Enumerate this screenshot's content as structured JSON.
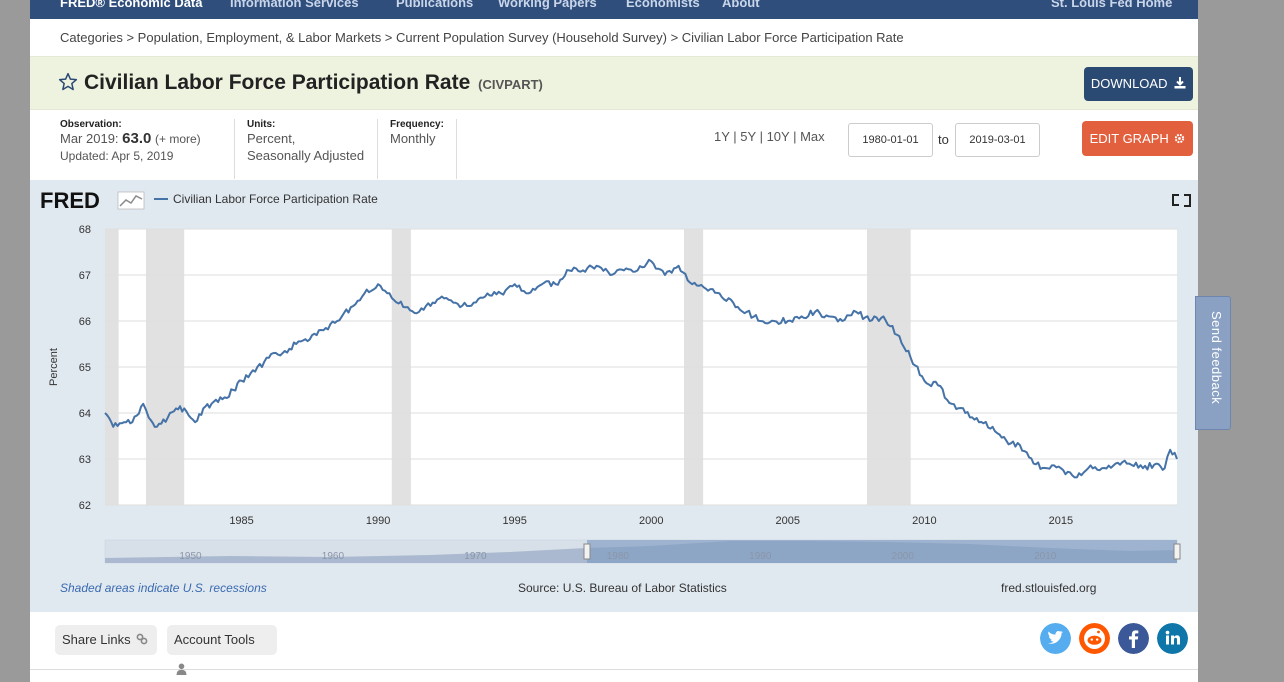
{
  "nav": {
    "brand": "FRED® Economic Data",
    "items": [
      "Information Services",
      "Publications",
      "Working Papers",
      "Economists",
      "About"
    ],
    "right": "St. Louis Fed Home"
  },
  "breadcrumb": "Categories > Population, Employment, & Labor Markets > Current Population Survey (Household Survey) > Civilian Labor Force Participation Rate",
  "header": {
    "title": "Civilian Labor Force Participation Rate",
    "series_id": "(CIVPART)",
    "download_label": "DOWNLOAD",
    "edit_label": "EDIT GRAPH"
  },
  "meta": {
    "obs_label": "Observation:",
    "obs_date": "Mar 2019:",
    "obs_value": "63.0",
    "obs_more": "(+ more)",
    "updated": "Updated: Apr 5, 2019",
    "units_label": "Units:",
    "units_line1": "Percent,",
    "units_line2": "Seasonally Adjusted",
    "freq_label": "Frequency:",
    "freq_value": "Monthly"
  },
  "range": {
    "links": [
      "1Y",
      "5Y",
      "10Y",
      "Max"
    ],
    "from": "1980-01-01",
    "to_label": "to",
    "to": "2019-03-01"
  },
  "graph": {
    "logo": "FRED",
    "source": "Source: U.S. Bureau of Labor Statistics",
    "footnote": "Shaded areas indicate U.S. recessions",
    "site": "fred.stlouisfed.org",
    "navigator_labels": [
      "1950",
      "1960",
      "1970",
      "1980",
      "1990",
      "2000",
      "2010"
    ]
  },
  "bottom": {
    "share": "Share Links",
    "account": "Account Tools"
  },
  "feedback": "Send feedback",
  "colors": {
    "nav_bg": "#2f4e7c",
    "line": "#4572a7",
    "download": "#2b4a73",
    "edit": "#e3603e",
    "twitter": "#55acee",
    "reddit": "#ff5700",
    "facebook": "#3b5998",
    "linkedin": "#0e76a8"
  },
  "chart_data": {
    "type": "line",
    "title": "",
    "legend": [
      "Civilian Labor Force Participation Rate"
    ],
    "legend_position": "top-left",
    "xlabel": "",
    "ylabel": "Percent",
    "xlim": [
      1980.0,
      2019.25
    ],
    "ylim": [
      62,
      68
    ],
    "yticks": [
      62,
      63,
      64,
      65,
      66,
      67,
      68
    ],
    "xticks": [
      1985,
      1990,
      1995,
      2000,
      2005,
      2010,
      2015
    ],
    "recessions": [
      [
        1980.0,
        1980.5
      ],
      [
        1981.5,
        1982.9
      ],
      [
        1990.5,
        1991.2
      ],
      [
        2001.2,
        2001.9
      ],
      [
        2007.9,
        2009.5
      ]
    ],
    "series": [
      {
        "name": "Civilian Labor Force Participation Rate",
        "x": [
          1980.0,
          1980.3,
          1980.7,
          1981.0,
          1981.4,
          1981.6,
          1981.9,
          1982.3,
          1982.6,
          1982.9,
          1983.3,
          1983.6,
          1983.9,
          1984.3,
          1984.7,
          1985.0,
          1985.5,
          1986.0,
          1986.5,
          1987.0,
          1987.5,
          1988.0,
          1988.5,
          1989.0,
          1989.5,
          1990.0,
          1990.5,
          1991.0,
          1991.5,
          1992.0,
          1992.5,
          1993.0,
          1993.5,
          1994.0,
          1994.5,
          1995.0,
          1995.5,
          1996.0,
          1996.5,
          1997.0,
          1997.5,
          1998.0,
          1998.5,
          1999.0,
          1999.5,
          2000.0,
          2000.5,
          2001.0,
          2001.5,
          2002.0,
          2002.5,
          2003.0,
          2003.5,
          2004.0,
          2004.5,
          2005.0,
          2005.5,
          2006.0,
          2006.5,
          2007.0,
          2007.5,
          2008.0,
          2008.5,
          2009.0,
          2009.5,
          2010.0,
          2010.5,
          2011.0,
          2011.5,
          2012.0,
          2012.5,
          2013.0,
          2013.5,
          2014.0,
          2014.5,
          2015.0,
          2015.5,
          2016.0,
          2016.5,
          2017.0,
          2017.5,
          2018.0,
          2018.5,
          2018.8,
          2019.0,
          2019.25
        ],
        "values": [
          64.0,
          63.7,
          63.8,
          63.8,
          64.2,
          63.9,
          63.7,
          63.9,
          64.1,
          64.1,
          63.8,
          64.1,
          64.2,
          64.3,
          64.5,
          64.7,
          64.9,
          65.2,
          65.3,
          65.5,
          65.6,
          65.8,
          66.0,
          66.3,
          66.6,
          66.8,
          66.5,
          66.3,
          66.2,
          66.4,
          66.5,
          66.3,
          66.4,
          66.6,
          66.6,
          66.8,
          66.6,
          66.8,
          66.8,
          67.1,
          67.1,
          67.2,
          67.0,
          67.1,
          67.1,
          67.3,
          67.0,
          67.2,
          66.8,
          66.7,
          66.6,
          66.4,
          66.2,
          66.0,
          66.0,
          66.0,
          66.1,
          66.2,
          66.1,
          66.0,
          66.2,
          66.0,
          66.1,
          65.7,
          65.2,
          64.7,
          64.6,
          64.2,
          64.0,
          63.8,
          63.7,
          63.4,
          63.3,
          62.9,
          62.8,
          62.8,
          62.6,
          62.8,
          62.8,
          62.9,
          62.9,
          62.8,
          62.9,
          62.8,
          63.2,
          63.0
        ]
      }
    ]
  }
}
